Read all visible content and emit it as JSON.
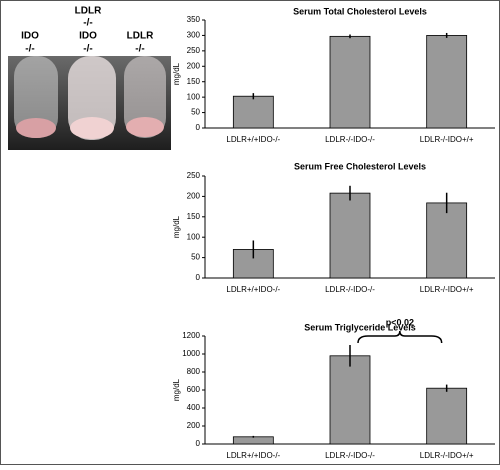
{
  "photo": {
    "labels": [
      "LDLR",
      "-/-",
      "IDO",
      "-/-",
      "IDO",
      "-/-",
      "LDLR",
      "-/-"
    ]
  },
  "chart_data": [
    {
      "type": "bar",
      "title": "Serum Total Cholesterol Levels",
      "ylabel": "mg/dL",
      "categories": [
        "LDLR+/+IDO-/-",
        "LDLR-/-IDO-/-",
        "LDLR-/-IDO+/+"
      ],
      "values": [
        103,
        297,
        300
      ],
      "errors": [
        10,
        6,
        8
      ],
      "color": "#999999",
      "ylim": [
        0,
        350
      ],
      "yticks": [
        0,
        50,
        100,
        150,
        200,
        250,
        300,
        350
      ]
    },
    {
      "type": "bar",
      "title": "Serum Free Cholesterol Levels",
      "ylabel": "mg/dL",
      "categories": [
        "LDLR+/+IDO-/-",
        "LDLR-/-IDO-/-",
        "LDLR-/-IDO+/+"
      ],
      "values": [
        70,
        208,
        184
      ],
      "errors": [
        22,
        18,
        25
      ],
      "color": "#999999",
      "ylim": [
        0,
        250
      ],
      "yticks": [
        0,
        50,
        100,
        150,
        200,
        250
      ]
    },
    {
      "type": "bar",
      "title": "Serum Triglyceride Levels",
      "ylabel": "mg/dL",
      "categories": [
        "LDLR+/+IDO-/-",
        "LDLR-/-IDO-/-",
        "LDLR-/-IDO+/+"
      ],
      "values": [
        80,
        980,
        620
      ],
      "errors": [
        10,
        120,
        40
      ],
      "color": "#999999",
      "ylim": [
        0,
        1200
      ],
      "yticks": [
        0,
        200,
        400,
        600,
        800,
        1000,
        1200
      ],
      "annotation": "p<0.02"
    }
  ]
}
